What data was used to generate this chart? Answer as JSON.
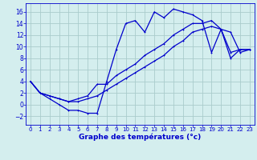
{
  "title": "Graphe des températures (°c)",
  "bg_color": "#d4eeee",
  "grid_color": "#aacccc",
  "line_color": "#0000cc",
  "xlim": [
    -0.5,
    23.5
  ],
  "ylim": [
    -3.5,
    17.5
  ],
  "xticks": [
    0,
    1,
    2,
    3,
    4,
    5,
    6,
    7,
    8,
    9,
    10,
    11,
    12,
    13,
    14,
    15,
    16,
    17,
    18,
    19,
    20,
    21,
    22,
    23
  ],
  "yticks": [
    -2,
    0,
    2,
    4,
    6,
    8,
    10,
    12,
    14,
    16
  ],
  "curve1_x": [
    0,
    1,
    2,
    3,
    4,
    5,
    6,
    7,
    8,
    9,
    10,
    11,
    12,
    13,
    14,
    15,
    16,
    17,
    18,
    19,
    20,
    21,
    22,
    23
  ],
  "curve1_y": [
    4,
    2,
    1,
    0,
    -1,
    -1,
    -1.5,
    -1.5,
    4,
    9.5,
    14,
    14.5,
    12.5,
    16,
    15,
    16.5,
    16,
    15.5,
    14.5,
    9,
    13,
    12.5,
    9,
    9.5
  ],
  "curve2_x": [
    0,
    1,
    2,
    3,
    4,
    5,
    6,
    7,
    8,
    9,
    10,
    11,
    12,
    13,
    14,
    15,
    16,
    17,
    18,
    19,
    20,
    21,
    22,
    23
  ],
  "curve2_y": [
    4,
    2,
    1.5,
    1,
    0.5,
    1,
    1.5,
    3.5,
    3.5,
    5,
    6,
    7,
    8.5,
    9.5,
    10.5,
    12,
    13,
    14,
    14,
    14.5,
    13,
    8,
    9.5,
    9.5
  ],
  "curve3_x": [
    0,
    1,
    2,
    3,
    4,
    5,
    6,
    7,
    8,
    9,
    10,
    11,
    12,
    13,
    14,
    15,
    16,
    17,
    18,
    19,
    20,
    21,
    22,
    23
  ],
  "curve3_y": [
    4,
    2,
    1.5,
    1,
    0.5,
    0.5,
    1,
    1.5,
    2.5,
    3.5,
    4.5,
    5.5,
    6.5,
    7.5,
    8.5,
    10,
    11,
    12.5,
    13,
    13.5,
    13,
    9,
    9.5,
    9.5
  ],
  "xlabel_fontsize": 6.5,
  "tick_fontsize_x": 5.0,
  "tick_fontsize_y": 5.5
}
